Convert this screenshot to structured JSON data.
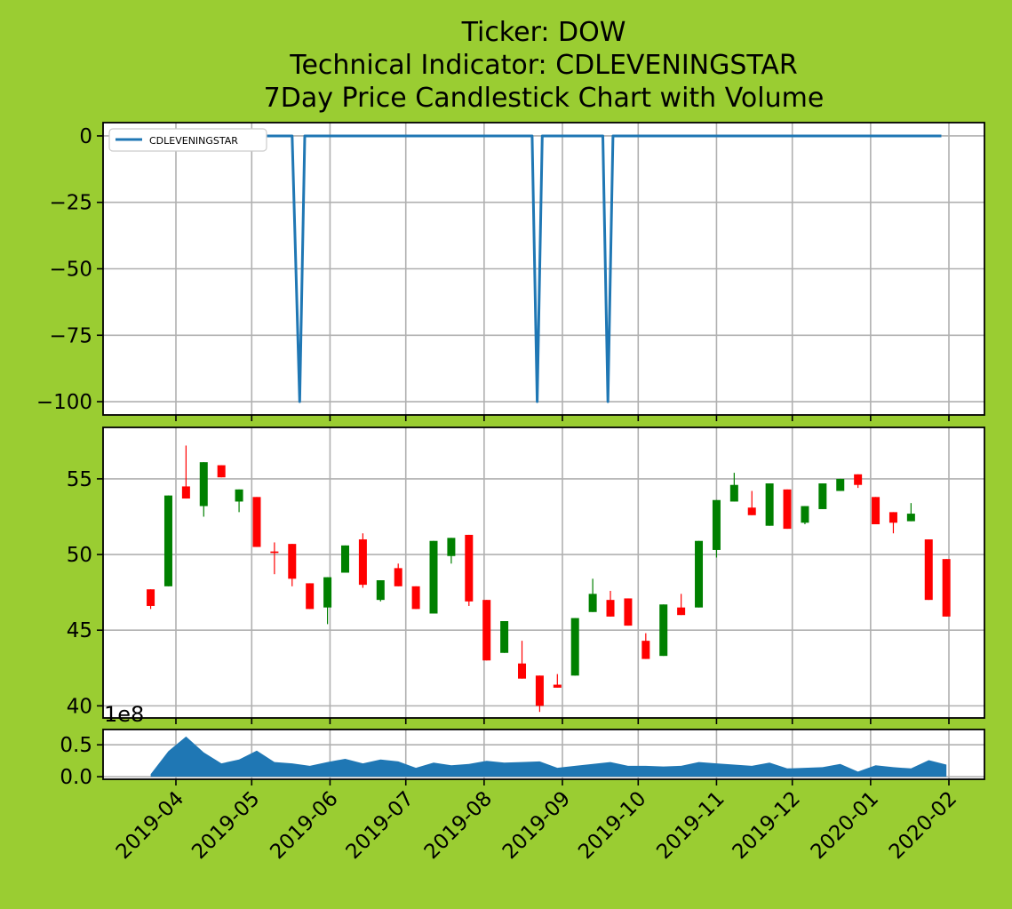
{
  "title": {
    "line1": "Ticker: DOW",
    "line2": "Technical Indicator: CDLEVENINGSTAR",
    "line3": "7Day Price Candlestick Chart with Volume"
  },
  "colors": {
    "background": "#9acd32",
    "panel": "#ffffff",
    "grid": "#b0b0b0",
    "line": "#1f77b4",
    "up": "#008000",
    "down": "#ff0000",
    "volume_fill": "#1f77b4"
  },
  "chart_data": [
    {
      "type": "line",
      "panel": "indicator",
      "series": [
        {
          "name": "CDLEVENINGSTAR",
          "x": [
            "2019-03-20",
            "2019-05-17",
            "2019-05-20",
            "2019-05-22",
            "2019-08-20",
            "2019-08-22",
            "2019-08-24",
            "2019-09-17",
            "2019-09-19",
            "2019-09-21",
            "2020-01-29"
          ],
          "values": [
            0,
            0,
            -100,
            0,
            0,
            -100,
            0,
            0,
            -100,
            0,
            0
          ]
        }
      ],
      "ylim": [
        -105,
        5
      ],
      "yticks": [
        0,
        -25,
        -50,
        -75,
        -100
      ],
      "ytick_labels": [
        "0",
        "−25",
        "−50",
        "−75",
        "−100"
      ],
      "legend": "top-left",
      "grid": true
    },
    {
      "type": "candlestick",
      "panel": "price",
      "x": [
        "2019-03-22",
        "2019-03-29",
        "2019-04-05",
        "2019-04-12",
        "2019-04-19",
        "2019-04-26",
        "2019-05-03",
        "2019-05-10",
        "2019-05-17",
        "2019-05-24",
        "2019-05-31",
        "2019-06-07",
        "2019-06-14",
        "2019-06-21",
        "2019-06-28",
        "2019-07-05",
        "2019-07-12",
        "2019-07-19",
        "2019-07-26",
        "2019-08-02",
        "2019-08-09",
        "2019-08-16",
        "2019-08-23",
        "2019-08-30",
        "2019-09-06",
        "2019-09-13",
        "2019-09-20",
        "2019-09-27",
        "2019-10-04",
        "2019-10-11",
        "2019-10-18",
        "2019-10-25",
        "2019-11-01",
        "2019-11-08",
        "2019-11-15",
        "2019-11-22",
        "2019-11-29",
        "2019-12-06",
        "2019-12-13",
        "2019-12-20",
        "2019-12-27",
        "2020-01-03",
        "2020-01-10",
        "2020-01-17",
        "2020-01-24",
        "2020-01-31"
      ],
      "open": [
        47.7,
        47.9,
        54.5,
        53.2,
        55.9,
        53.5,
        53.8,
        50.2,
        50.7,
        48.1,
        46.5,
        48.8,
        51.0,
        47.0,
        49.1,
        47.9,
        46.1,
        49.9,
        51.3,
        47.0,
        43.5,
        42.8,
        42.0,
        41.4,
        42.0,
        46.2,
        47.0,
        47.1,
        44.3,
        43.3,
        46.5,
        46.5,
        50.3,
        53.5,
        53.1,
        51.9,
        54.3,
        52.1,
        53.0,
        54.2,
        55.3,
        53.8,
        52.8,
        52.2,
        51.0,
        49.7
      ],
      "close": [
        46.6,
        53.9,
        53.7,
        56.1,
        55.1,
        54.3,
        50.5,
        50.1,
        48.4,
        46.4,
        48.5,
        50.6,
        48.0,
        48.3,
        47.9,
        46.4,
        50.9,
        51.1,
        46.9,
        43.0,
        45.6,
        41.8,
        40.0,
        41.2,
        45.8,
        47.4,
        45.9,
        45.3,
        43.1,
        46.7,
        46.0,
        50.9,
        53.6,
        54.6,
        52.6,
        54.7,
        51.7,
        53.2,
        54.7,
        55.0,
        54.6,
        52.0,
        52.1,
        52.7,
        47.0,
        45.9
      ],
      "high": [
        47.7,
        53.9,
        57.2,
        56.1,
        55.9,
        54.3,
        53.8,
        50.8,
        50.7,
        48.1,
        48.5,
        50.6,
        51.4,
        48.3,
        49.4,
        47.9,
        50.9,
        51.1,
        51.3,
        47.0,
        45.6,
        44.3,
        42.0,
        42.1,
        45.8,
        48.4,
        47.6,
        47.1,
        44.8,
        46.7,
        47.4,
        50.9,
        53.6,
        55.4,
        54.2,
        54.7,
        54.3,
        53.2,
        54.7,
        55.0,
        55.3,
        53.8,
        52.8,
        53.4,
        51.0,
        49.7
      ],
      "low": [
        46.4,
        47.9,
        53.7,
        52.5,
        55.1,
        52.8,
        50.5,
        48.7,
        47.9,
        46.4,
        45.4,
        48.8,
        47.8,
        46.9,
        47.9,
        46.4,
        46.1,
        49.4,
        46.6,
        43.0,
        43.5,
        41.8,
        39.6,
        41.2,
        42.0,
        46.2,
        45.9,
        45.3,
        43.1,
        43.3,
        46.0,
        46.5,
        49.8,
        53.5,
        52.6,
        51.9,
        51.7,
        52.0,
        53.0,
        54.2,
        54.4,
        52.0,
        51.4,
        52.2,
        47.0,
        45.9
      ],
      "ylim": [
        39.2,
        58.4
      ],
      "yticks": [
        40,
        45,
        50,
        55
      ],
      "ytick_labels": [
        "40",
        "45",
        "50",
        "55"
      ],
      "grid": true
    },
    {
      "type": "area",
      "panel": "volume",
      "x": [
        "2019-03-22",
        "2019-03-29",
        "2019-04-05",
        "2019-04-12",
        "2019-04-19",
        "2019-04-26",
        "2019-05-03",
        "2019-05-10",
        "2019-05-17",
        "2019-05-24",
        "2019-05-31",
        "2019-06-07",
        "2019-06-14",
        "2019-06-21",
        "2019-06-28",
        "2019-07-05",
        "2019-07-12",
        "2019-07-19",
        "2019-07-26",
        "2019-08-02",
        "2019-08-09",
        "2019-08-16",
        "2019-08-23",
        "2019-08-30",
        "2019-09-06",
        "2019-09-13",
        "2019-09-20",
        "2019-09-27",
        "2019-10-04",
        "2019-10-11",
        "2019-10-18",
        "2019-10-25",
        "2019-11-01",
        "2019-11-08",
        "2019-11-15",
        "2019-11-22",
        "2019-11-29",
        "2019-12-06",
        "2019-12-13",
        "2019-12-20",
        "2019-12-27",
        "2020-01-03",
        "2020-01-10",
        "2020-01-17",
        "2020-01-24",
        "2020-01-31"
      ],
      "values": [
        0.04,
        0.4,
        0.63,
        0.38,
        0.21,
        0.27,
        0.41,
        0.23,
        0.21,
        0.17,
        0.23,
        0.28,
        0.21,
        0.27,
        0.24,
        0.14,
        0.22,
        0.18,
        0.2,
        0.25,
        0.22,
        0.23,
        0.24,
        0.14,
        0.17,
        0.2,
        0.23,
        0.17,
        0.17,
        0.16,
        0.17,
        0.23,
        0.21,
        0.19,
        0.17,
        0.22,
        0.13,
        0.14,
        0.15,
        0.2,
        0.08,
        0.18,
        0.15,
        0.13,
        0.26,
        0.19
      ],
      "ylim": [
        -0.04,
        0.74
      ],
      "yticks": [
        0.0,
        0.5
      ],
      "ytick_labels": [
        "0.0",
        "0.5"
      ],
      "scale_label": "1e8",
      "grid": true
    }
  ],
  "x_axis": {
    "ticks": [
      "2019-04-01",
      "2019-05-01",
      "2019-06-01",
      "2019-07-01",
      "2019-08-01",
      "2019-09-01",
      "2019-10-01",
      "2019-11-01",
      "2019-12-01",
      "2020-01-01",
      "2020-02-01"
    ],
    "tick_labels": [
      "2019-04",
      "2019-05",
      "2019-06",
      "2019-07",
      "2019-08",
      "2019-09",
      "2019-10",
      "2019-11",
      "2019-12",
      "2020-01",
      "2020-02"
    ]
  }
}
